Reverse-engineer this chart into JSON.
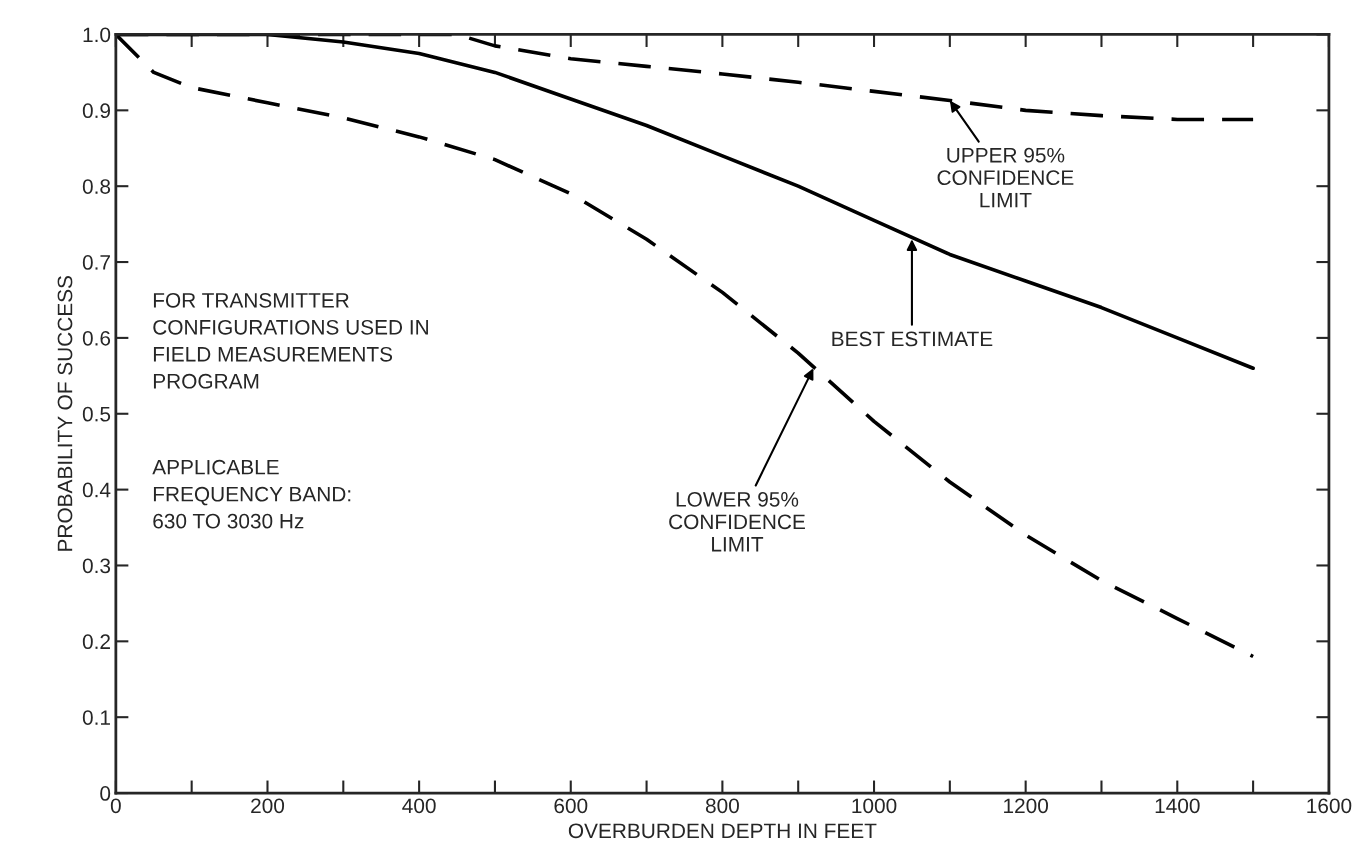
{
  "chart_data": {
    "type": "line",
    "xlabel": "OVERBURDEN DEPTH IN FEET",
    "ylabel": "PROBABILITY OF SUCCESS",
    "xlim": [
      0,
      1600
    ],
    "ylim": [
      0,
      1
    ],
    "xticks": [
      0,
      {
        "value": 100,
        "label": null
      },
      200,
      {
        "value": 300,
        "label": null
      },
      400,
      {
        "value": 500,
        "label": null
      },
      600,
      {
        "value": 700,
        "label": null
      },
      800,
      {
        "value": 900,
        "label": null
      },
      1000,
      {
        "value": 1100,
        "label": null
      },
      1200,
      {
        "value": 1300,
        "label": null
      },
      1400,
      {
        "value": 1500,
        "label": null
      },
      1600
    ],
    "yticks": [
      0,
      0.1,
      0.2,
      0.3,
      0.4,
      0.5,
      0.6,
      0.7,
      0.8,
      0.9,
      {
        "value": 1,
        "label": "1.0"
      }
    ],
    "grid": false,
    "series": [
      {
        "color": "#000000",
        "line_style": "solid",
        "x": [
          0,
          100,
          200,
          300,
          400,
          500,
          600,
          700,
          800,
          900,
          1000,
          1100,
          1200,
          1300,
          1400,
          1500
        ],
        "values": [
          1.0,
          1.0,
          1.0,
          0.99,
          0.975,
          0.95,
          0.915,
          0.88,
          0.84,
          0.8,
          0.755,
          0.71,
          0.675,
          0.64,
          0.6,
          0.56
        ]
      },
      {
        "color": "#000000",
        "line_style": "dashed",
        "x": [
          0,
          450,
          500,
          600,
          700,
          800,
          900,
          1000,
          1100,
          1200,
          1300,
          1400,
          1500
        ],
        "values": [
          1.0,
          1.0,
          0.985,
          0.968,
          0.958,
          0.948,
          0.937,
          0.925,
          0.913,
          0.9,
          0.893,
          0.888,
          0.888
        ]
      },
      {
        "color": "#000000",
        "line_style": "dashed",
        "x": [
          0,
          50,
          100,
          200,
          300,
          400,
          500,
          600,
          700,
          800,
          900,
          1000,
          1100,
          1200,
          1300,
          1400,
          1500
        ],
        "values": [
          1.0,
          0.95,
          0.93,
          0.91,
          0.89,
          0.865,
          0.835,
          0.79,
          0.73,
          0.66,
          0.58,
          0.49,
          0.41,
          0.34,
          0.28,
          0.23,
          0.18
        ]
      }
    ],
    "annotations": [
      {
        "text": "UPPER 95%\nCONFIDENCE\nLIMIT",
        "x": 1100,
        "y": 0.913
      },
      {
        "text": "BEST ESTIMATE",
        "x": 1050,
        "y": 0.73
      },
      {
        "text": "LOWER 95%\nCONFIDENCE\nLIMIT",
        "x": 920,
        "y": 0.56
      },
      "FOR TRANSMITTER\nCONFIGURATIONS USED IN\nFIELD MEASUREMENTS\nPROGRAM",
      "APPLICABLE\nFREQUENCY BAND:\n630 TO 3030 Hz"
    ]
  }
}
